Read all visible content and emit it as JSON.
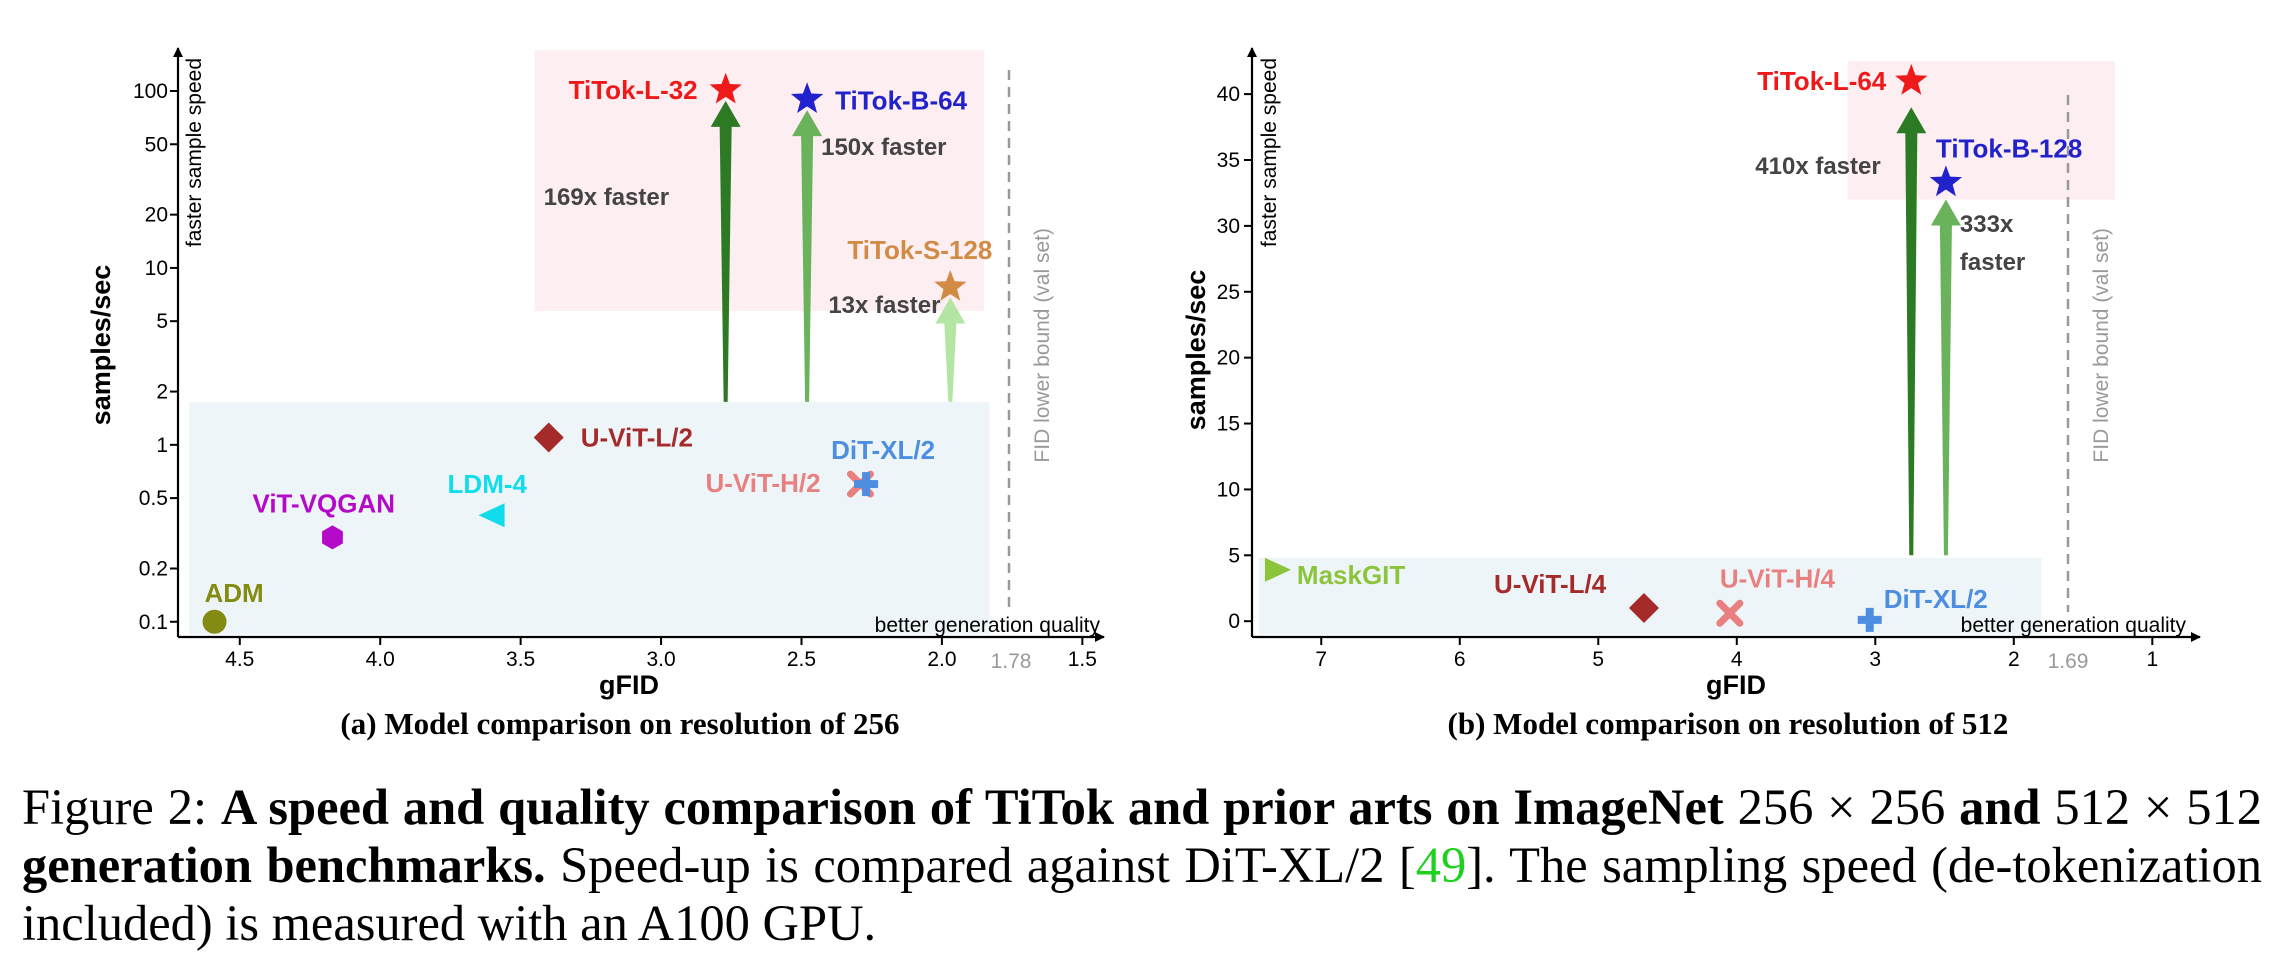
{
  "chart_data": [
    {
      "type": "scatter",
      "subtitle": "(a) Model comparison on resolution of 256",
      "xlabel": "gFID",
      "ylabel": "samples/sec",
      "y_direction_label": "faster sample speed",
      "x_direction_label": "better generation quality",
      "x_axis": "inverted",
      "xlim": [
        4.72,
        1.43
      ],
      "y_scale": "log",
      "ylim": [
        0.082,
        175
      ],
      "xticks": [
        "4.5",
        "4.0",
        "3.5",
        "3.0",
        "2.5",
        "2.0",
        "1.5"
      ],
      "xticks_values": [
        4.5,
        4.0,
        3.5,
        3.0,
        2.5,
        2.0,
        1.5
      ],
      "yticks": [
        "0.1",
        "0.2",
        "0.5",
        "1",
        "2",
        "5",
        "10",
        "20",
        "50",
        "100"
      ],
      "yticks_values": [
        0.1,
        0.2,
        0.5,
        1,
        2,
        5,
        10,
        20,
        50,
        100
      ],
      "reference_line": {
        "label": "FID lower bound (val set)",
        "x": 1.78,
        "tick_label": "1.78"
      },
      "regions": [
        {
          "name": "tokenized-models",
          "x": [
            3.45,
            1.85
          ],
          "y": [
            5.7,
            170
          ],
          "color": "#fdeef1"
        },
        {
          "name": "prior-arts",
          "x": [
            4.68,
            1.83
          ],
          "y": [
            0.085,
            1.75
          ],
          "color": "#eef5f9"
        }
      ],
      "points": [
        {
          "name": "ADM",
          "gfid": 4.59,
          "speed": 0.1,
          "marker": "circle",
          "color": "#848b12"
        },
        {
          "name": "ViT-VQGAN",
          "gfid": 4.17,
          "speed": 0.3,
          "marker": "hexagon",
          "color": "#b40ac8"
        },
        {
          "name": "LDM-4",
          "gfid": 3.6,
          "speed": 0.4,
          "marker": "triangle-left",
          "color": "#11dcec"
        },
        {
          "name": "U-ViT-L/2",
          "gfid": 3.4,
          "speed": 1.1,
          "marker": "diamond",
          "color": "#a52a2a"
        },
        {
          "name": "U-ViT-H/2",
          "gfid": 2.29,
          "speed": 0.6,
          "marker": "x",
          "color": "#e88080"
        },
        {
          "name": "DiT-XL/2",
          "gfid": 2.27,
          "speed": 0.6,
          "marker": "plus",
          "color": "#4d8ee0"
        },
        {
          "name": "TiTok-L-32",
          "gfid": 2.77,
          "speed": 101.6,
          "marker": "star",
          "color": "#ee1a1a"
        },
        {
          "name": "TiTok-B-64",
          "gfid": 2.48,
          "speed": 89.8,
          "marker": "star",
          "color": "#2222cc"
        },
        {
          "name": "TiTok-S-128",
          "gfid": 1.97,
          "speed": 7.8,
          "marker": "star",
          "color": "#d18b44"
        }
      ],
      "speedups": [
        {
          "label": "169x faster",
          "gfid": 2.77,
          "from": 1.75,
          "to": 88,
          "color": "#2d7a24"
        },
        {
          "label": "150x faster",
          "gfid": 2.48,
          "from": 1.75,
          "to": 78,
          "color": "#6ab35c"
        },
        {
          "label": "13x faster",
          "gfid": 1.97,
          "from": 1.75,
          "to": 6.8,
          "color": "#b4e6a3"
        }
      ]
    },
    {
      "type": "scatter",
      "subtitle": "(b) Model comparison on resolution of 512",
      "xlabel": "gFID",
      "ylabel": "samples/sec",
      "y_direction_label": "faster sample speed",
      "x_direction_label": "better generation quality",
      "x_axis": "inverted",
      "xlim": [
        7.5,
        0.67
      ],
      "y_scale": "linear",
      "ylim": [
        -1.2,
        43.5
      ],
      "xticks": [
        "7",
        "6",
        "5",
        "4",
        "3",
        "2",
        "1"
      ],
      "xticks_values": [
        7,
        6,
        5,
        4,
        3,
        2,
        1
      ],
      "yticks": [
        "0",
        "5",
        "10",
        "15",
        "20",
        "25",
        "30",
        "35",
        "40"
      ],
      "yticks_values": [
        0,
        5,
        10,
        15,
        20,
        25,
        30,
        35,
        40
      ],
      "reference_line": {
        "label": "FID lower bound (val set)",
        "x": 1.69,
        "tick_label": "1.69"
      },
      "regions": [
        {
          "name": "tokenized-models",
          "x": [
            3.2,
            1.27
          ],
          "y": [
            32,
            42.5
          ],
          "color": "#fdeef1"
        },
        {
          "name": "prior-arts",
          "x": [
            7.45,
            1.8
          ],
          "y": [
            -1.0,
            4.8
          ],
          "color": "#eef5f9"
        }
      ],
      "points": [
        {
          "name": "MaskGIT",
          "gfid": 7.32,
          "speed": 3.9,
          "marker": "triangle-right",
          "color": "#8cc43c"
        },
        {
          "name": "U-ViT-L/4",
          "gfid": 4.67,
          "speed": 1.0,
          "marker": "diamond",
          "color": "#a52a2a"
        },
        {
          "name": "U-ViT-H/4",
          "gfid": 4.05,
          "speed": 0.6,
          "marker": "x",
          "color": "#e88080"
        },
        {
          "name": "DiT-XL/2",
          "gfid": 3.04,
          "speed": 0.1,
          "marker": "plus",
          "color": "#4d8ee0"
        },
        {
          "name": "TiTok-L-64",
          "gfid": 2.74,
          "speed": 41.0,
          "marker": "star",
          "color": "#ee1a1a"
        },
        {
          "name": "TiTok-B-128",
          "gfid": 2.49,
          "speed": 33.3,
          "marker": "star",
          "color": "#2222cc"
        }
      ],
      "speedups": [
        {
          "label": "410x faster",
          "gfid": 2.74,
          "from": 5.0,
          "to": 39.0,
          "color": "#2d7a24"
        },
        {
          "label": "333x faster",
          "gfid": 2.49,
          "from": 5.0,
          "to": 32.0,
          "color": "#6ab35c"
        }
      ]
    }
  ],
  "caption": {
    "prefix": "Figure 2: ",
    "bold_part1": "A speed and quality comparison of TiTok and prior arts on ImageNet",
    "math1": "256 × 256",
    "bold_and": "and",
    "math2": "512 × 512",
    "bold_part2": "generation benchmarks.",
    "text1": "Speed-up is compared against DiT-XL/2 [",
    "citation": "49",
    "text2": "]. The sampling speed (de-tokenization included) is measured with an A100 GPU."
  }
}
